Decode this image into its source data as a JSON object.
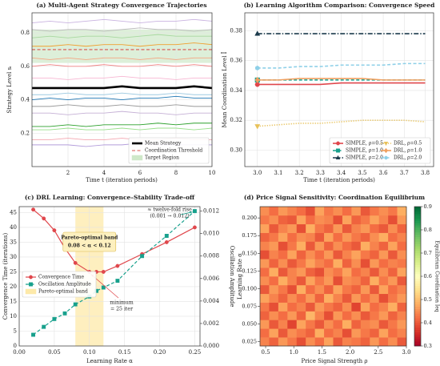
{
  "chart_data": [
    {
      "type": "line",
      "title": "(a) Multi-Agent Strategy Convergence Trajectories",
      "xlabel": "Time t (iteration periods)",
      "ylabel": "Strategy Level sᵢ",
      "x": [
        0,
        1,
        2,
        3,
        4,
        5,
        6,
        7,
        8,
        9,
        10
      ],
      "xlim": [
        0,
        10
      ],
      "xticks": [
        2,
        4,
        6,
        8,
        10
      ],
      "ylim": [
        0,
        0.92
      ],
      "yticks": [
        0.2,
        0.4,
        0.6,
        0.8
      ],
      "grid": true,
      "legend": "lower right",
      "bands": [
        {
          "name": "Target Region",
          "axis": "y",
          "range": [
            0.62,
            0.82
          ],
          "color": "#cfe8c9"
        }
      ],
      "hlines": [
        {
          "name": "Coordination Threshold",
          "value": 0.7,
          "color": "#d9534f",
          "dash": "dashed"
        }
      ],
      "series": [
        {
          "name": "Mean Strategy",
          "color": "#000000",
          "bold": true,
          "values": [
            0.47,
            0.47,
            0.47,
            0.47,
            0.47,
            0.48,
            0.47,
            0.47,
            0.47,
            0.48,
            0.47
          ]
        },
        {
          "color": "#c9b3e0",
          "values": [
            0.86,
            0.87,
            0.86,
            0.87,
            0.88,
            0.87,
            0.86,
            0.87,
            0.87,
            0.88,
            0.87
          ]
        },
        {
          "color": "#bbbbbb",
          "values": [
            0.82,
            0.81,
            0.82,
            0.82,
            0.81,
            0.82,
            0.83,
            0.82,
            0.82,
            0.81,
            0.82
          ]
        },
        {
          "color": "#a8d8a0",
          "values": [
            0.77,
            0.78,
            0.77,
            0.78,
            0.78,
            0.77,
            0.78,
            0.79,
            0.78,
            0.78,
            0.78
          ]
        },
        {
          "color": "#f0a030",
          "values": [
            0.72,
            0.72,
            0.73,
            0.72,
            0.73,
            0.73,
            0.72,
            0.73,
            0.73,
            0.74,
            0.73
          ]
        },
        {
          "color": "#f4a582",
          "values": [
            0.65,
            0.64,
            0.65,
            0.64,
            0.65,
            0.65,
            0.64,
            0.65,
            0.64,
            0.65,
            0.65
          ]
        },
        {
          "color": "#f08080",
          "values": [
            0.6,
            0.61,
            0.6,
            0.6,
            0.61,
            0.6,
            0.6,
            0.61,
            0.6,
            0.61,
            0.6
          ]
        },
        {
          "color": "#f7b6d2",
          "values": [
            0.53,
            0.53,
            0.52,
            0.53,
            0.53,
            0.54,
            0.53,
            0.53,
            0.52,
            0.53,
            0.53
          ]
        },
        {
          "color": "#9ecae1",
          "values": [
            0.43,
            0.43,
            0.44,
            0.43,
            0.43,
            0.44,
            0.43,
            0.43,
            0.44,
            0.43,
            0.43
          ]
        },
        {
          "color": "#1f77b4",
          "values": [
            0.4,
            0.41,
            0.4,
            0.41,
            0.41,
            0.4,
            0.41,
            0.41,
            0.42,
            0.41,
            0.41
          ]
        },
        {
          "color": "#999999",
          "values": [
            0.36,
            0.36,
            0.37,
            0.36,
            0.36,
            0.37,
            0.36,
            0.36,
            0.37,
            0.36,
            0.36
          ]
        },
        {
          "color": "#c5b0d5",
          "values": [
            0.32,
            0.32,
            0.31,
            0.32,
            0.32,
            0.33,
            0.32,
            0.32,
            0.31,
            0.32,
            0.32
          ]
        },
        {
          "color": "#2ca02c",
          "values": [
            0.24,
            0.24,
            0.25,
            0.24,
            0.25,
            0.25,
            0.25,
            0.26,
            0.25,
            0.26,
            0.26
          ]
        },
        {
          "color": "#98df8a",
          "values": [
            0.22,
            0.22,
            0.23,
            0.22,
            0.22,
            0.23,
            0.22,
            0.23,
            0.23,
            0.22,
            0.23
          ]
        },
        {
          "color": "#f4a6b0",
          "values": [
            0.16,
            0.16,
            0.17,
            0.16,
            0.16,
            0.17,
            0.16,
            0.16,
            0.17,
            0.16,
            0.16
          ]
        },
        {
          "color": "#b39ddb",
          "values": [
            0.13,
            0.13,
            0.13,
            0.12,
            0.13,
            0.13,
            0.14,
            0.13,
            0.13,
            0.13,
            0.13
          ]
        }
      ]
    },
    {
      "type": "line",
      "title": "(b) Learning Algorithm Comparison: Convergence Speed",
      "xlabel": "Time t (iteration periods)",
      "ylabel": "Mean Coordination Level Ī",
      "x": [
        3,
        3.1,
        3.2,
        3.3,
        3.4,
        3.5,
        3.6,
        3.7,
        3.8
      ],
      "xlim": [
        2.94,
        3.84
      ],
      "xticks": [
        {
          "value": 3,
          "label": "3.0"
        },
        3.1,
        3.2,
        3.3,
        3.4,
        3.5,
        3.6,
        3.7,
        3.8
      ],
      "ylim": [
        0.289,
        0.392
      ],
      "yticks": [
        {
          "value": 0.3,
          "label": "0.30"
        },
        0.32,
        0.34,
        0.36,
        0.38
      ],
      "grid": true,
      "legend": "lower right",
      "legend_columns": 2,
      "marker_at": "start",
      "series": [
        {
          "name": "SIMPLE, ρ=0.5",
          "color": "#e0474c",
          "marker": "circle",
          "dash": "solid",
          "values": [
            0.344,
            0.344,
            0.344,
            0.344,
            0.345,
            0.345,
            0.345,
            0.345,
            0.345
          ]
        },
        {
          "name": "SIMPLE, ρ=1.0",
          "color": "#17a08c",
          "marker": "square",
          "dash": "dashed",
          "values": [
            0.347,
            0.347,
            0.347,
            0.347,
            0.347,
            0.347,
            0.347,
            0.347,
            0.347
          ]
        },
        {
          "name": "SIMPLE, ρ=2.0",
          "color": "#1b3a4b",
          "marker": "triangle",
          "dash": "dashdot",
          "values": [
            0.378,
            0.378,
            0.378,
            0.378,
            0.378,
            0.378,
            0.378,
            0.378,
            0.378
          ]
        },
        {
          "name": "DRL, ρ=0.5",
          "color": "#e8c25a",
          "marker": "triangle-down",
          "dash": "dotted",
          "values": [
            0.316,
            0.317,
            0.318,
            0.318,
            0.319,
            0.32,
            0.32,
            0.32,
            0.319
          ]
        },
        {
          "name": "DRL, ρ=1.0",
          "color": "#f0a060",
          "marker": "diamond",
          "dash": "solid",
          "values": [
            0.347,
            0.347,
            0.348,
            0.348,
            0.348,
            0.348,
            0.347,
            0.347,
            0.347
          ]
        },
        {
          "name": "DRL, ρ=2.0",
          "color": "#8fd0e8",
          "marker": "hexagon",
          "dash": "dashed",
          "values": [
            0.355,
            0.355,
            0.356,
            0.356,
            0.357,
            0.357,
            0.357,
            0.358,
            0.358
          ]
        }
      ]
    },
    {
      "type": "line",
      "title": "(c) DRL Learning: Convergence–Stability Trade-off",
      "xlabel": "Learning Rate α",
      "ylabel": "Convergence Time (iterations)",
      "y2label": "Oscillation Amplitude",
      "x": [
        0.02,
        0.035,
        0.05,
        0.065,
        0.08,
        0.1,
        0.11,
        0.12,
        0.14,
        0.175,
        0.21,
        0.25
      ],
      "xlim": [
        0,
        0.2575
      ],
      "xticks": [
        {
          "value": 0,
          "label": "0.00"
        },
        0.05,
        {
          "value": 0.1,
          "label": "0.10"
        },
        0.15,
        {
          "value": 0.2,
          "label": "0.20"
        },
        0.25
      ],
      "ylim": [
        0,
        47
      ],
      "yticks": [
        0,
        5,
        10,
        15,
        20,
        25,
        30,
        35,
        40,
        45
      ],
      "y2lim": [
        0,
        0.0124
      ],
      "y2ticks": [
        {
          "value": 0,
          "label": "0.000"
        },
        0.002,
        0.004,
        0.006,
        0.008,
        {
          "value": 0.01,
          "label": "0.010"
        },
        0.012
      ],
      "grid": true,
      "legend": "center left",
      "bands": [
        {
          "name": "Pareto-optimal band",
          "axis": "x",
          "range": [
            0.08,
            0.12
          ],
          "color": "#fde9a9"
        }
      ],
      "series": [
        {
          "name": "Convergence Time",
          "color": "#e0474c",
          "marker": "circle",
          "dash": "solid",
          "values": [
            46,
            43,
            39,
            33,
            28,
            25,
            25,
            25,
            27,
            31,
            35,
            40
          ]
        },
        {
          "name": "Oscillation Amplitude",
          "color": "#17a08c",
          "marker": "square",
          "dash": "dashed",
          "axis": "y2",
          "values": [
            0.001,
            0.0017,
            0.0024,
            0.0029,
            0.0037,
            0.0044,
            0.0049,
            0.0052,
            0.0058,
            0.008,
            0.0098,
            0.012
          ]
        }
      ],
      "annotations": [
        {
          "text": "Pareto-optimal band",
          "color": "#a07800"
        },
        {
          "text": "0.08 < α < 0.12",
          "color": "#a07800"
        },
        {
          "text": "minimum",
          "color": "#e0474c"
        },
        {
          "text": "= 25 iter",
          "color": "#e0474c"
        },
        {
          "text": "≈ twelve-fold rise",
          "color": "#17a08c"
        },
        {
          "text": "(0.001 → 0.012)",
          "color": "#17a08c"
        }
      ]
    },
    {
      "type": "heatmap",
      "title": "(d) Price Signal Sensitivity: Coordination Equilibrium",
      "xlabel": "Price Signal Strength ρ",
      "ylabel": "Learning Rate α",
      "xlim": [
        0.4,
        3.0
      ],
      "xticks": [
        0.5,
        {
          "value": 1,
          "label": "1.0"
        },
        1.5,
        {
          "value": 2,
          "label": "2.0"
        },
        2.5,
        {
          "value": 3,
          "label": "3.0"
        }
      ],
      "ylim": [
        0.019,
        0.216
      ],
      "yticks": [
        0.025,
        {
          "value": 0.05,
          "label": "0.050"
        },
        0.075,
        {
          "value": 0.1,
          "label": "0.100"
        },
        0.125,
        {
          "value": 0.15,
          "label": "0.150"
        },
        0.175,
        {
          "value": 0.2,
          "label": "0.200"
        }
      ],
      "colorbar": {
        "label": "Equilibrium Coordination Īeq",
        "lim": [
          0.3,
          0.9
        ],
        "ticks": [
          0.3,
          0.4,
          0.5,
          0.6,
          0.7,
          0.8,
          0.9
        ],
        "colormap": [
          "#a50026",
          "#d73027",
          "#f46d43",
          "#fdae61",
          "#fee08b",
          "#ffffbf",
          "#d9ef8b",
          "#a6d96a",
          "#66bd63",
          "#1a9850",
          "#006837"
        ]
      },
      "values": [
        [
          0.44,
          0.41,
          0.46,
          0.43,
          0.39,
          0.45,
          0.42,
          0.47,
          0.4,
          0.44,
          0.43,
          0.41,
          0.46,
          0.42,
          0.45,
          0.4
        ],
        [
          0.42,
          0.47,
          0.4,
          0.45,
          0.43,
          0.41,
          0.48,
          0.42,
          0.44,
          0.39,
          0.46,
          0.43,
          0.41,
          0.47,
          0.42,
          0.44
        ],
        [
          0.46,
          0.4,
          0.44,
          0.38,
          0.47,
          0.43,
          0.4,
          0.45,
          0.42,
          0.48,
          0.41,
          0.44,
          0.45,
          0.4,
          0.43,
          0.46
        ],
        [
          0.41,
          0.45,
          0.42,
          0.46,
          0.41,
          0.49,
          0.44,
          0.39,
          0.46,
          0.42,
          0.45,
          0.4,
          0.43,
          0.46,
          0.41,
          0.44
        ],
        [
          0.43,
          0.39,
          0.47,
          0.42,
          0.44,
          0.4,
          0.46,
          0.43,
          0.41,
          0.45,
          0.38,
          0.47,
          0.42,
          0.44,
          0.48,
          0.41
        ],
        [
          0.47,
          0.44,
          0.41,
          0.45,
          0.42,
          0.46,
          0.41,
          0.48,
          0.44,
          0.4,
          0.46,
          0.42,
          0.45,
          0.39,
          0.43,
          0.46
        ],
        [
          0.4,
          0.46,
          0.43,
          0.39,
          0.48,
          0.42,
          0.45,
          0.41,
          0.47,
          0.43,
          0.41,
          0.46,
          0.4,
          0.47,
          0.42,
          0.44
        ],
        [
          0.45,
          0.42,
          0.48,
          0.44,
          0.4,
          0.47,
          0.43,
          0.46,
          0.39,
          0.45,
          0.44,
          0.41,
          0.48,
          0.43,
          0.46,
          0.4
        ],
        [
          0.42,
          0.48,
          0.4,
          0.44,
          0.46,
          0.41,
          0.39,
          0.45,
          0.43,
          0.47,
          0.42,
          0.44,
          0.4,
          0.45,
          0.41,
          0.47
        ],
        [
          0.46,
          0.41,
          0.45,
          0.4,
          0.43,
          0.47,
          0.44,
          0.42,
          0.48,
          0.41,
          0.45,
          0.39,
          0.46,
          0.42,
          0.44,
          0.43
        ],
        [
          0.39,
          0.44,
          0.42,
          0.47,
          0.41,
          0.45,
          0.42,
          0.46,
          0.4,
          0.44,
          0.47,
          0.43,
          0.41,
          0.46,
          0.4,
          0.45
        ],
        [
          0.44,
          0.46,
          0.39,
          0.43,
          0.48,
          0.4,
          0.46,
          0.41,
          0.45,
          0.42,
          0.4,
          0.48,
          0.44,
          0.41,
          0.47,
          0.42
        ],
        [
          0.41,
          0.43,
          0.47,
          0.42,
          0.45,
          0.44,
          0.4,
          0.47,
          0.42,
          0.46,
          0.43,
          0.41,
          0.45,
          0.48,
          0.42,
          0.44
        ],
        [
          0.47,
          0.4,
          0.44,
          0.46,
          0.39,
          0.48,
          0.43,
          0.41,
          0.46,
          0.4,
          0.44,
          0.46,
          0.42,
          0.4,
          0.45,
          0.41
        ],
        [
          0.43,
          0.45,
          0.41,
          0.4,
          0.47,
          0.42,
          0.45,
          0.44,
          0.39,
          0.47,
          0.41,
          0.43,
          0.47,
          0.44,
          0.39,
          0.46
        ],
        [
          0.45,
          0.42,
          0.46,
          0.44,
          0.42,
          0.39,
          0.47,
          0.43,
          0.45,
          0.42,
          0.46,
          0.4,
          0.43,
          0.45,
          0.43,
          0.48
        ]
      ]
    }
  ]
}
